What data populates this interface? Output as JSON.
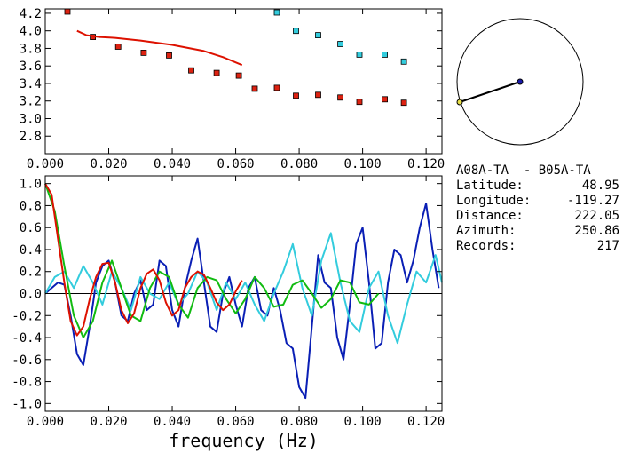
{
  "chart_data": [
    {
      "type": "scatter",
      "xlim": [
        0.0,
        0.125
      ],
      "ylim": [
        2.6,
        4.25
      ],
      "xticks": [
        "0.000",
        "0.020",
        "0.040",
        "0.060",
        "0.080",
        "0.100",
        "0.120"
      ],
      "yticks": [
        "2.8",
        "3.0",
        "3.2",
        "3.4",
        "3.6",
        "3.8",
        "4.0",
        "4.2"
      ],
      "series": [
        {
          "color": "#dd2211",
          "x": [
            0.007,
            0.015,
            0.023,
            0.031,
            0.039,
            0.046,
            0.054,
            0.061,
            0.066,
            0.073,
            0.079,
            0.086,
            0.093,
            0.099,
            0.107,
            0.113
          ],
          "y": [
            4.22,
            3.93,
            3.82,
            3.75,
            3.72,
            3.55,
            3.52,
            3.49,
            3.34,
            3.35,
            3.26,
            3.27,
            3.24,
            3.19,
            3.22,
            3.18
          ]
        },
        {
          "color": "#33ccdd",
          "x": [
            0.073,
            0.079,
            0.086,
            0.093,
            0.099,
            0.107,
            0.113
          ],
          "y": [
            4.21,
            4.0,
            3.95,
            3.85,
            3.73,
            3.73,
            3.65
          ]
        },
        {
          "type": "line",
          "color": "#dd1100",
          "x": [
            0.01,
            0.013,
            0.017,
            0.022,
            0.03,
            0.04,
            0.05,
            0.056,
            0.062
          ],
          "y": [
            4.0,
            3.95,
            3.93,
            3.92,
            3.89,
            3.84,
            3.77,
            3.7,
            3.61
          ]
        }
      ]
    },
    {
      "type": "line",
      "xlim": [
        0.0,
        0.125
      ],
      "ylim": [
        -1.07,
        1.07
      ],
      "xlabel": "frequency (Hz)",
      "xticks": [
        "0.000",
        "0.020",
        "0.040",
        "0.060",
        "0.080",
        "0.100",
        "0.120"
      ],
      "yticks": [
        "1.0",
        "0.8",
        "0.6",
        "0.4",
        "0.2",
        "0.0",
        "-0.2",
        "-0.4",
        "-0.6",
        "-0.8",
        "-1.0"
      ],
      "series": [
        {
          "color": "#0a1fb5",
          "x": [
            0.0,
            0.002,
            0.004,
            0.006,
            0.008,
            0.01,
            0.012,
            0.014,
            0.016,
            0.018,
            0.02,
            0.022,
            0.024,
            0.026,
            0.028,
            0.03,
            0.032,
            0.034,
            0.036,
            0.038,
            0.04,
            0.042,
            0.044,
            0.046,
            0.048,
            0.05,
            0.052,
            0.054,
            0.056,
            0.058,
            0.06,
            0.062,
            0.064,
            0.066,
            0.068,
            0.07,
            0.072,
            0.074,
            0.076,
            0.078,
            0.08,
            0.082,
            0.084,
            0.086,
            0.088,
            0.09,
            0.092,
            0.094,
            0.096,
            0.098,
            0.1,
            0.102,
            0.104,
            0.106,
            0.108,
            0.11,
            0.112,
            0.114,
            0.116,
            0.118,
            0.12,
            0.122,
            0.124
          ],
          "y": [
            0.0,
            0.05,
            0.1,
            0.08,
            -0.2,
            -0.55,
            -0.65,
            -0.3,
            0.1,
            0.25,
            0.3,
            0.1,
            -0.2,
            -0.25,
            0.0,
            0.12,
            -0.15,
            -0.1,
            0.3,
            0.25,
            -0.15,
            -0.3,
            0.05,
            0.3,
            0.5,
            0.1,
            -0.3,
            -0.35,
            0.0,
            0.15,
            -0.1,
            -0.3,
            0.05,
            0.15,
            -0.15,
            -0.2,
            0.05,
            -0.15,
            -0.45,
            -0.5,
            -0.85,
            -0.95,
            -0.3,
            0.35,
            0.1,
            0.05,
            -0.4,
            -0.6,
            -0.1,
            0.45,
            0.6,
            0.1,
            -0.5,
            -0.45,
            0.1,
            0.4,
            0.35,
            0.1,
            0.3,
            0.6,
            0.82,
            0.4,
            0.05
          ]
        },
        {
          "color": "#33ccdd",
          "x": [
            0.0,
            0.003,
            0.006,
            0.009,
            0.012,
            0.015,
            0.018,
            0.021,
            0.024,
            0.027,
            0.03,
            0.033,
            0.036,
            0.039,
            0.042,
            0.045,
            0.048,
            0.051,
            0.054,
            0.057,
            0.06,
            0.063,
            0.066,
            0.069,
            0.072,
            0.075,
            0.078,
            0.081,
            0.084,
            0.087,
            0.09,
            0.093,
            0.096,
            0.099,
            0.102,
            0.105,
            0.108,
            0.111,
            0.114,
            0.117,
            0.12,
            0.123,
            0.125
          ],
          "y": [
            0.0,
            0.15,
            0.2,
            0.05,
            0.25,
            0.1,
            -0.1,
            0.2,
            0.05,
            -0.15,
            0.15,
            0.0,
            -0.05,
            0.1,
            -0.1,
            0.0,
            0.2,
            0.1,
            -0.15,
            0.1,
            -0.05,
            0.1,
            -0.1,
            -0.25,
            0.0,
            0.2,
            0.45,
            0.05,
            -0.2,
            0.3,
            0.55,
            0.1,
            -0.25,
            -0.35,
            0.05,
            0.2,
            -0.2,
            -0.45,
            -0.1,
            0.2,
            0.1,
            0.35,
            0.1
          ]
        },
        {
          "color": "#11bb11",
          "x": [
            0.0,
            0.003,
            0.006,
            0.009,
            0.012,
            0.015,
            0.018,
            0.021,
            0.024,
            0.027,
            0.03,
            0.033,
            0.036,
            0.039,
            0.042,
            0.045,
            0.048,
            0.051,
            0.054,
            0.057,
            0.06,
            0.063,
            0.066,
            0.069,
            0.072,
            0.075,
            0.078,
            0.081,
            0.084,
            0.087,
            0.09,
            0.093,
            0.096,
            0.099,
            0.102,
            0.105
          ],
          "y": [
            1.0,
            0.75,
            0.25,
            -0.2,
            -0.4,
            -0.25,
            0.1,
            0.3,
            0.05,
            -0.2,
            -0.25,
            0.05,
            0.2,
            0.15,
            -0.1,
            -0.22,
            0.05,
            0.15,
            0.12,
            -0.05,
            -0.18,
            -0.05,
            0.15,
            0.05,
            -0.12,
            -0.1,
            0.08,
            0.12,
            0.0,
            -0.13,
            -0.05,
            0.12,
            0.1,
            -0.08,
            -0.1,
            0.0
          ]
        },
        {
          "color": "#dd1100",
          "x": [
            0.0,
            0.002,
            0.004,
            0.006,
            0.008,
            0.01,
            0.012,
            0.014,
            0.016,
            0.018,
            0.02,
            0.022,
            0.024,
            0.026,
            0.028,
            0.03,
            0.032,
            0.034,
            0.036,
            0.038,
            0.04,
            0.042,
            0.044,
            0.046,
            0.048,
            0.05,
            0.052,
            0.054,
            0.056,
            0.058,
            0.06,
            0.062
          ],
          "y": [
            1.0,
            0.9,
            0.5,
            0.1,
            -0.25,
            -0.38,
            -0.3,
            -0.05,
            0.15,
            0.27,
            0.28,
            0.1,
            -0.15,
            -0.27,
            -0.18,
            0.05,
            0.18,
            0.22,
            0.12,
            -0.08,
            -0.2,
            -0.15,
            0.05,
            0.15,
            0.2,
            0.17,
            0.05,
            -0.08,
            -0.15,
            -0.1,
            0.02,
            0.12
          ]
        }
      ]
    }
  ],
  "map": {
    "station_color": "#e8e04a",
    "center_color": "#1a1aaa"
  },
  "info": {
    "station_pair": "A08A-TA  - B05A-TA",
    "rows": [
      {
        "label": "Latitude:",
        "value": "48.95"
      },
      {
        "label": "Longitude:",
        "value": "-119.27"
      },
      {
        "label": "Distance:",
        "value": "222.05"
      },
      {
        "label": "Azimuth:",
        "value": "250.86"
      },
      {
        "label": "Records:",
        "value": "217"
      }
    ]
  }
}
